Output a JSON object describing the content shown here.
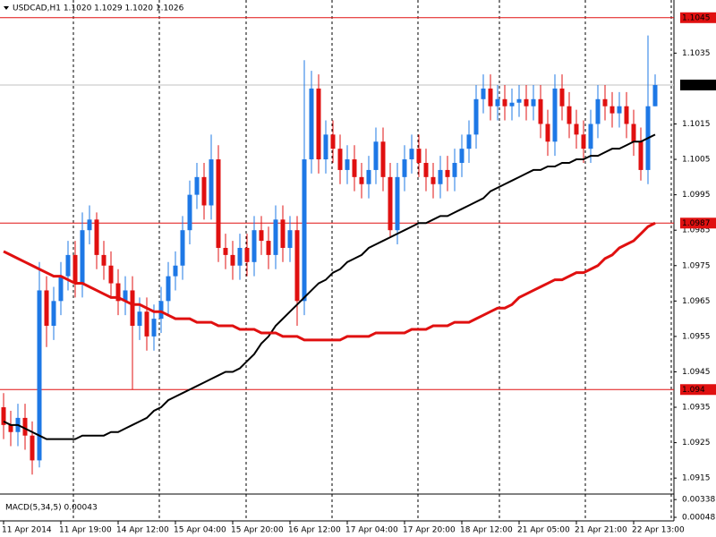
{
  "chart_data": {
    "type": "candlestick",
    "title": "USDCAD,H1 1.1020 1.1029 1.1020 1.1026",
    "ylim": [
      1.0911,
      1.105
    ],
    "yticks": [
      1.0915,
      1.0925,
      1.0935,
      1.0945,
      1.0955,
      1.0965,
      1.0975,
      1.0985,
      1.0995,
      1.1005,
      1.1015,
      1.1035
    ],
    "up_color": "#1e78e6",
    "down_color": "#e01010",
    "categories": [
      "11 Apr 2014",
      null,
      null,
      null,
      null,
      null,
      null,
      null,
      "11 Apr 19:00",
      null,
      null,
      null,
      null,
      null,
      null,
      null,
      "14 Apr 12:00",
      null,
      null,
      null,
      null,
      null,
      null,
      null,
      "15 Apr 04:00",
      null,
      null,
      null,
      null,
      null,
      null,
      null,
      "15 Apr 20:00",
      null,
      null,
      null,
      null,
      null,
      null,
      null,
      "16 Apr 12:00",
      null,
      null,
      null,
      null,
      null,
      null,
      null,
      "17 Apr 04:00",
      null,
      null,
      null,
      null,
      null,
      null,
      null,
      "17 Apr 20:00",
      null,
      null,
      null,
      null,
      null,
      null,
      null,
      "18 Apr 12:00",
      null,
      null,
      null,
      null,
      null,
      null,
      null,
      "21 Apr 05:00",
      null,
      null,
      null,
      null,
      null,
      null,
      null,
      "21 Apr 21:00",
      null,
      null,
      null,
      null,
      null,
      null,
      null,
      "22 Apr 13:00",
      null,
      null,
      null
    ],
    "open": [
      1.0935,
      1.093,
      1.0928,
      1.0932,
      1.0927,
      1.092,
      1.0968,
      1.0958,
      1.0965,
      1.0972,
      1.0978,
      1.097,
      1.0985,
      1.0988,
      1.0978,
      1.0975,
      1.097,
      1.0965,
      1.0968,
      1.0958,
      1.0962,
      1.0955,
      1.096,
      1.0965,
      1.0972,
      1.0975,
      1.0985,
      1.0995,
      1.1,
      1.0992,
      1.1005,
      1.098,
      1.0978,
      1.0975,
      1.098,
      1.0976,
      1.0985,
      1.0982,
      1.0978,
      1.0988,
      1.098,
      1.0985,
      1.0965,
      1.1005,
      1.1025,
      1.1005,
      1.1012,
      1.1008,
      1.1002,
      1.1005,
      1.1,
      1.0998,
      1.1002,
      1.101,
      1.1,
      1.0985,
      1.1,
      1.1005,
      1.1008,
      1.1004,
      1.1,
      1.0998,
      1.1002,
      1.1,
      1.1004,
      1.1008,
      1.1012,
      1.1022,
      1.1025,
      1.102,
      1.1022,
      1.102,
      1.1021,
      1.1022,
      1.102,
      1.1022,
      1.1015,
      1.101,
      1.1025,
      1.102,
      1.1015,
      1.1012,
      1.1008,
      1.1015,
      1.1022,
      1.102,
      1.1018,
      1.102,
      1.1015,
      1.101,
      1.1002,
      1.102
    ],
    "high": [
      1.0939,
      1.0934,
      1.0936,
      1.0936,
      1.0931,
      1.0976,
      1.0972,
      1.0969,
      1.0976,
      1.0982,
      1.0982,
      1.099,
      1.0992,
      1.099,
      1.0982,
      1.0979,
      1.0974,
      1.0972,
      1.0972,
      1.0966,
      1.0966,
      1.0964,
      1.0969,
      1.0976,
      1.0979,
      1.0989,
      1.0999,
      1.1004,
      1.1004,
      1.1012,
      1.1009,
      1.0984,
      1.0982,
      1.0984,
      1.0984,
      1.0989,
      1.0989,
      1.0986,
      1.0992,
      1.0992,
      1.0989,
      1.0989,
      1.1033,
      1.103,
      1.1029,
      1.1016,
      1.1016,
      1.1012,
      1.1009,
      1.1009,
      1.1004,
      1.1006,
      1.1014,
      1.1014,
      1.1004,
      1.1004,
      1.1009,
      1.1012,
      1.1012,
      1.1008,
      1.1004,
      1.1006,
      1.1006,
      1.1008,
      1.1012,
      1.1016,
      1.1026,
      1.1029,
      1.1029,
      1.1026,
      1.1026,
      1.1025,
      1.1026,
      1.1026,
      1.1026,
      1.1026,
      1.1019,
      1.1029,
      1.1029,
      1.1024,
      1.1019,
      1.1016,
      1.1019,
      1.1026,
      1.1026,
      1.1024,
      1.1024,
      1.1024,
      1.1019,
      1.1014,
      1.104,
      1.1029
    ],
    "low": [
      1.0926,
      1.0924,
      1.0924,
      1.0923,
      1.0916,
      1.0918,
      1.0952,
      1.0954,
      1.0961,
      1.0968,
      1.0966,
      1.0966,
      1.0981,
      1.0974,
      1.0971,
      1.0966,
      1.0961,
      1.0961,
      1.094,
      1.0954,
      1.0951,
      1.0951,
      1.0956,
      1.0961,
      1.0968,
      1.0971,
      1.0981,
      1.0991,
      1.0988,
      1.0988,
      1.0976,
      1.0974,
      1.0971,
      1.0971,
      1.0972,
      1.0972,
      1.0978,
      1.0974,
      1.0974,
      1.0976,
      1.0976,
      1.0958,
      1.0961,
      1.1001,
      1.1001,
      1.1001,
      1.1004,
      1.0998,
      1.0998,
      1.0996,
      1.0994,
      1.0994,
      1.0998,
      1.0996,
      1.0983,
      1.0981,
      1.0996,
      1.1001,
      1.1,
      1.0996,
      1.0994,
      1.0994,
      1.0996,
      1.0996,
      1.1,
      1.1004,
      1.1008,
      1.1018,
      1.1016,
      1.1016,
      1.1016,
      1.1016,
      1.1017,
      1.1016,
      1.1016,
      1.1011,
      1.1006,
      1.1006,
      1.1016,
      1.1011,
      1.1008,
      1.1004,
      1.1004,
      1.1011,
      1.1016,
      1.1014,
      1.1014,
      1.1011,
      1.1006,
      1.0999,
      1.0998,
      1.102
    ],
    "close": [
      1.093,
      1.0928,
      1.0932,
      1.0927,
      1.092,
      1.0968,
      1.0958,
      1.0965,
      1.0972,
      1.0978,
      1.097,
      1.0985,
      1.0988,
      1.0978,
      1.0975,
      1.097,
      1.0965,
      1.0968,
      1.0958,
      1.0962,
      1.0955,
      1.096,
      1.0965,
      1.0972,
      1.0975,
      1.0985,
      1.0995,
      1.1,
      1.0992,
      1.1005,
      1.098,
      1.0978,
      1.0975,
      1.098,
      1.0976,
      1.0985,
      1.0982,
      1.0978,
      1.0988,
      1.098,
      1.0985,
      1.0965,
      1.1005,
      1.1025,
      1.1005,
      1.1012,
      1.1008,
      1.1002,
      1.1005,
      1.1,
      1.0998,
      1.1002,
      1.101,
      1.1,
      1.0985,
      1.1,
      1.1005,
      1.1008,
      1.1004,
      1.1,
      1.0998,
      1.1002,
      1.1,
      1.1004,
      1.1008,
      1.1012,
      1.1022,
      1.1025,
      1.102,
      1.1022,
      1.102,
      1.1021,
      1.1022,
      1.102,
      1.1022,
      1.1015,
      1.101,
      1.1025,
      1.102,
      1.1015,
      1.1012,
      1.1008,
      1.1015,
      1.1022,
      1.102,
      1.1018,
      1.102,
      1.1015,
      1.101,
      1.1002,
      1.102,
      1.1026
    ],
    "lines": [
      {
        "color": "#000000",
        "width": 2,
        "values": [
          1.0931,
          1.093,
          1.093,
          1.0929,
          1.0928,
          1.0927,
          1.0926,
          1.0926,
          1.0926,
          1.0926,
          1.0926,
          1.0927,
          1.0927,
          1.0927,
          1.0927,
          1.0928,
          1.0928,
          1.0929,
          1.093,
          1.0931,
          1.0932,
          1.0934,
          1.0935,
          1.0937,
          1.0938,
          1.0939,
          1.094,
          1.0941,
          1.0942,
          1.0943,
          1.0944,
          1.0945,
          1.0945,
          1.0946,
          1.0948,
          1.095,
          1.0953,
          1.0955,
          1.0958,
          1.096,
          1.0962,
          1.0964,
          1.0966,
          1.0968,
          1.097,
          1.0971,
          1.0973,
          1.0974,
          1.0976,
          1.0977,
          1.0978,
          1.098,
          1.0981,
          1.0982,
          1.0983,
          1.0984,
          1.0985,
          1.0986,
          1.0987,
          1.0987,
          1.0988,
          1.0989,
          1.0989,
          1.099,
          1.0991,
          1.0992,
          1.0993,
          1.0994,
          1.0996,
          1.0997,
          1.0998,
          1.0999,
          1.1,
          1.1001,
          1.1002,
          1.1002,
          1.1003,
          1.1003,
          1.1004,
          1.1004,
          1.1005,
          1.1005,
          1.1006,
          1.1006,
          1.1007,
          1.1008,
          1.1008,
          1.1009,
          1.101,
          1.101,
          1.1011,
          1.1012
        ]
      },
      {
        "color": "#e01010",
        "width": 3,
        "values": [
          1.0979,
          1.0978,
          1.0977,
          1.0976,
          1.0975,
          1.0974,
          1.0973,
          1.0972,
          1.0972,
          1.0971,
          1.097,
          1.097,
          1.0969,
          1.0968,
          1.0967,
          1.0966,
          1.0966,
          1.0965,
          1.0964,
          1.0964,
          1.0963,
          1.0962,
          1.0962,
          1.0961,
          1.096,
          1.096,
          1.096,
          1.0959,
          1.0959,
          1.0959,
          1.0958,
          1.0958,
          1.0958,
          1.0957,
          1.0957,
          1.0957,
          1.0956,
          1.0956,
          1.0956,
          1.0955,
          1.0955,
          1.0955,
          1.0954,
          1.0954,
          1.0954,
          1.0954,
          1.0954,
          1.0954,
          1.0955,
          1.0955,
          1.0955,
          1.0955,
          1.0956,
          1.0956,
          1.0956,
          1.0956,
          1.0956,
          1.0957,
          1.0957,
          1.0957,
          1.0958,
          1.0958,
          1.0958,
          1.0959,
          1.0959,
          1.0959,
          1.096,
          1.0961,
          1.0962,
          1.0963,
          1.0963,
          1.0964,
          1.0966,
          1.0967,
          1.0968,
          1.0969,
          1.097,
          1.0971,
          1.0971,
          1.0972,
          1.0973,
          1.0973,
          1.0974,
          1.0975,
          1.0977,
          1.0978,
          1.098,
          1.0981,
          1.0982,
          1.0984,
          1.0986,
          1.0987
        ]
      }
    ],
    "levels": [
      {
        "value": 1.1045,
        "color": "#e01010",
        "box": "#e01010"
      },
      {
        "value": 1.1026,
        "color": "#c0c0c0",
        "box": "#000000"
      },
      {
        "value": 1.0987,
        "color": "#e01010",
        "box": "#e01010"
      },
      {
        "value": 1.094,
        "color": "#e01010",
        "box": "#e01010"
      }
    ],
    "indicator": {
      "title": "MACD(5,34,5) 0.00043",
      "ylim": [
        -0.0001,
        0.0037
      ],
      "yticks": [
        0.00338,
        0.00048
      ]
    }
  }
}
